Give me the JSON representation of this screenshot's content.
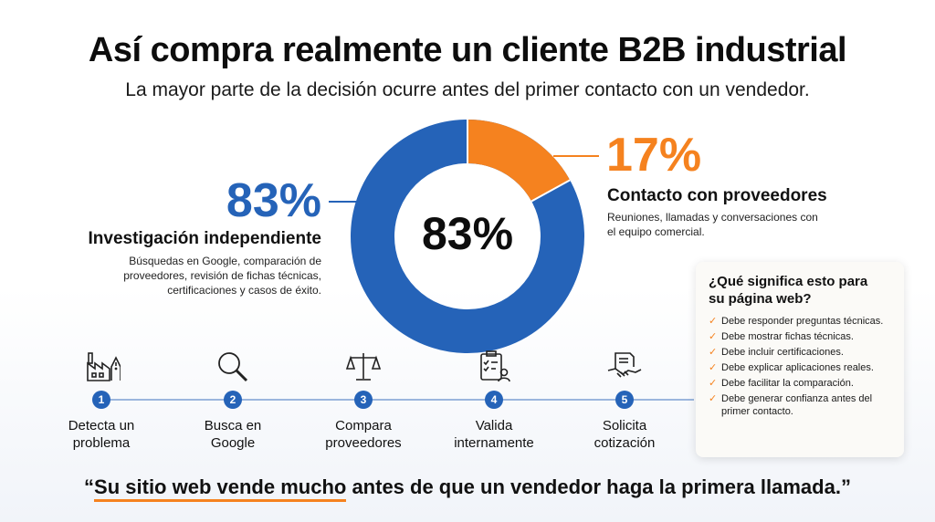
{
  "header": {
    "title": "Así compra realmente un cliente B2B industrial",
    "subtitle": "La mayor parte de la decisión ocurre antes del primer contacto con un vendedor."
  },
  "donut": {
    "center_label": "83%",
    "segments": [
      {
        "name": "Investigación independiente",
        "value": 83,
        "color": "#2563b8"
      },
      {
        "name": "Contacto con proveedores",
        "value": 17,
        "color": "#f5821f"
      }
    ]
  },
  "left_stat": {
    "percent": "83%",
    "heading": "Investigación independiente",
    "description": "Búsquedas en Google, comparación de proveedores, revisión de fichas técnicas, certificaciones y casos de éxito."
  },
  "right_stat": {
    "percent": "17%",
    "heading": "Contacto con proveedores",
    "description": "Reuniones, llamadas y conversaciones con el equipo comercial."
  },
  "steps": [
    {
      "number": "1",
      "label_line1": "Detecta un",
      "label_line2": "problema",
      "icon": "factory-warning-icon"
    },
    {
      "number": "2",
      "label_line1": "Busca en",
      "label_line2": "Google",
      "icon": "magnifier-icon"
    },
    {
      "number": "3",
      "label_line1": "Compara",
      "label_line2": "proveedores",
      "icon": "balance-scale-icon"
    },
    {
      "number": "4",
      "label_line1": "Valida",
      "label_line2": "internamente",
      "icon": "checklist-user-icon"
    },
    {
      "number": "5",
      "label_line1": "Solicita",
      "label_line2": "cotización",
      "icon": "handshake-document-icon"
    }
  ],
  "card": {
    "title_line1": "¿Qué significa esto para",
    "title_line2": "su página web?",
    "items": [
      "Debe responder preguntas técnicas.",
      "Debe mostrar fichas técnicas.",
      "Debe incluir certificaciones.",
      "Debe explicar aplicaciones reales.",
      "Debe facilitar la comparación.",
      "Debe generar confianza antes del primer contacto."
    ]
  },
  "quote": {
    "open_mark": "“",
    "underlined": "Su sitio web vende mucho",
    "rest": " antes de que un vendedor haga la primera llamada.”"
  },
  "colors": {
    "blue": "#2563b8",
    "orange": "#f5821f"
  }
}
